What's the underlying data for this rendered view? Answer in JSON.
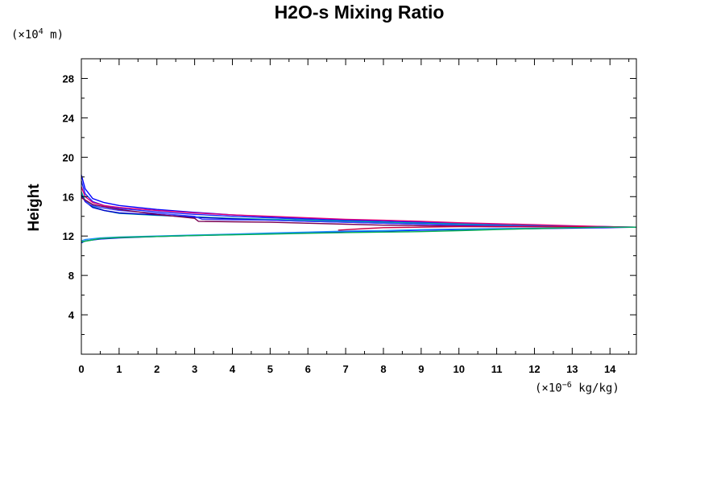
{
  "chart_data": {
    "type": "line",
    "title": "H2O-s Mixing Ratio",
    "ylabel": "Height",
    "yunit": {
      "prefix": "(×10",
      "exponent": "4",
      "suffix": " m)"
    },
    "xunit": {
      "prefix": "(×10",
      "exponent": "−6",
      "suffix": " kg/kg)"
    },
    "xlim": [
      0,
      14.7
    ],
    "ylim": [
      0,
      30
    ],
    "xticks": [
      0,
      1,
      2,
      3,
      4,
      5,
      6,
      7,
      8,
      9,
      10,
      11,
      12,
      13,
      14
    ],
    "yticks": [
      4,
      8,
      12,
      16,
      20,
      24,
      28
    ],
    "grid": false,
    "legend": "none",
    "series": [
      {
        "color": "#0000ff",
        "x": [
          0,
          0.1,
          0.3,
          0.6,
          1,
          2,
          3,
          4,
          5,
          6,
          7,
          8,
          9,
          10,
          11,
          12,
          13,
          14,
          14.7
        ],
        "y": [
          18.2,
          16.8,
          15.8,
          15.4,
          15.1,
          14.7,
          14.4,
          14.15,
          13.95,
          13.8,
          13.65,
          13.5,
          13.4,
          13.3,
          13.2,
          13.1,
          13.0,
          12.95,
          12.9
        ]
      },
      {
        "color": "#1a2cff",
        "x": [
          0,
          0.1,
          0.3,
          0.6,
          1,
          2,
          3,
          4,
          5,
          6,
          7,
          8,
          9,
          10,
          11,
          12,
          13,
          14,
          14.7
        ],
        "y": [
          17.6,
          16.3,
          15.5,
          15.1,
          14.8,
          14.45,
          14.2,
          14.0,
          13.85,
          13.7,
          13.55,
          13.45,
          13.35,
          13.25,
          13.15,
          13.05,
          12.95,
          12.9,
          12.9
        ]
      },
      {
        "color": "#e0007a",
        "x": [
          0,
          0.1,
          0.3,
          0.6,
          1,
          2,
          3,
          4,
          5,
          6,
          7,
          8,
          9,
          10,
          11,
          12,
          13,
          14,
          14.7
        ],
        "y": [
          17.0,
          16.0,
          15.4,
          15.1,
          14.9,
          14.6,
          14.35,
          14.15,
          14.0,
          13.85,
          13.7,
          13.6,
          13.5,
          13.35,
          13.25,
          13.15,
          13.05,
          12.95,
          12.9
        ]
      },
      {
        "color": "#00b0a0",
        "x": [
          0,
          0.1,
          0.3,
          0.6,
          1,
          2,
          3,
          4,
          5,
          6,
          7,
          8,
          9,
          10,
          11,
          12,
          13,
          14,
          14.7
        ],
        "y": [
          16.5,
          15.6,
          15.0,
          14.6,
          14.3,
          14.1,
          13.95,
          13.8,
          13.7,
          13.6,
          13.5,
          13.4,
          13.3,
          13.2,
          13.1,
          13.05,
          12.95,
          12.9,
          12.9
        ]
      },
      {
        "color": "#0000cc",
        "x": [
          0,
          0.1,
          0.3,
          0.6,
          1,
          2,
          3,
          4,
          5,
          6,
          7,
          8,
          9,
          10,
          11,
          12,
          13,
          14,
          14.7
        ],
        "y": [
          16.2,
          15.5,
          14.9,
          14.6,
          14.35,
          14.15,
          13.9,
          13.75,
          13.6,
          13.5,
          13.4,
          13.3,
          13.2,
          13.1,
          13.05,
          13.0,
          12.95,
          12.9,
          12.9
        ]
      },
      {
        "color": "#3b3bff",
        "x": [
          0,
          0.2,
          0.5,
          1,
          2,
          3,
          3.2,
          4,
          5,
          6,
          7,
          8,
          9,
          10,
          11,
          12,
          13,
          14,
          14.7
        ],
        "y": [
          16.0,
          15.2,
          14.9,
          14.6,
          14.3,
          14.0,
          13.7,
          13.65,
          13.6,
          13.5,
          13.4,
          13.3,
          13.2,
          13.1,
          13.05,
          13.0,
          12.95,
          12.9,
          12.9
        ]
      },
      {
        "color": "#7a0050",
        "x": [
          0,
          0.3,
          1,
          2,
          3,
          3.1,
          4,
          5,
          6,
          7,
          8,
          9,
          10,
          11,
          12,
          13,
          14,
          14.7
        ],
        "y": [
          15.9,
          15.2,
          14.7,
          14.2,
          13.8,
          13.5,
          13.45,
          13.4,
          13.3,
          13.2,
          13.1,
          13.05,
          13.0,
          12.95,
          12.95,
          12.95,
          12.9,
          12.9
        ]
      },
      {
        "color": "#cc0044",
        "x": [
          6.8,
          7.5,
          8,
          9,
          10,
          11,
          12,
          13,
          14,
          14.7
        ],
        "y": [
          12.6,
          12.75,
          12.85,
          12.9,
          12.95,
          12.95,
          12.95,
          12.95,
          12.9,
          12.9
        ]
      },
      {
        "color": "#0000ff",
        "x": [
          0,
          0.1,
          0.5,
          1,
          2,
          3,
          4,
          5,
          6,
          7,
          8,
          9,
          10,
          11,
          12,
          13,
          14,
          14.7
        ],
        "y": [
          11.3,
          11.5,
          11.7,
          11.8,
          11.95,
          12.05,
          12.15,
          12.25,
          12.35,
          12.45,
          12.5,
          12.6,
          12.65,
          12.7,
          12.75,
          12.8,
          12.85,
          12.9
        ]
      },
      {
        "color": "#1e90ff",
        "x": [
          0,
          0.1,
          0.5,
          1,
          2,
          3,
          4,
          5,
          6,
          7,
          8,
          9,
          10,
          11,
          12,
          13,
          14,
          14.7
        ],
        "y": [
          11.5,
          11.65,
          11.8,
          11.9,
          12.0,
          12.1,
          12.2,
          12.3,
          12.4,
          12.5,
          12.55,
          12.65,
          12.7,
          12.75,
          12.8,
          12.85,
          12.9,
          12.9
        ]
      },
      {
        "color": "#00b050",
        "x": [
          0,
          0.5,
          1,
          2,
          3,
          4,
          5,
          6,
          7,
          8,
          9,
          10,
          11,
          12,
          13,
          14,
          14.7
        ],
        "y": [
          11.4,
          11.75,
          11.85,
          11.95,
          12.05,
          12.12,
          12.2,
          12.28,
          12.35,
          12.4,
          12.45,
          12.55,
          12.65,
          12.75,
          12.85,
          12.9,
          12.9
        ]
      }
    ]
  }
}
